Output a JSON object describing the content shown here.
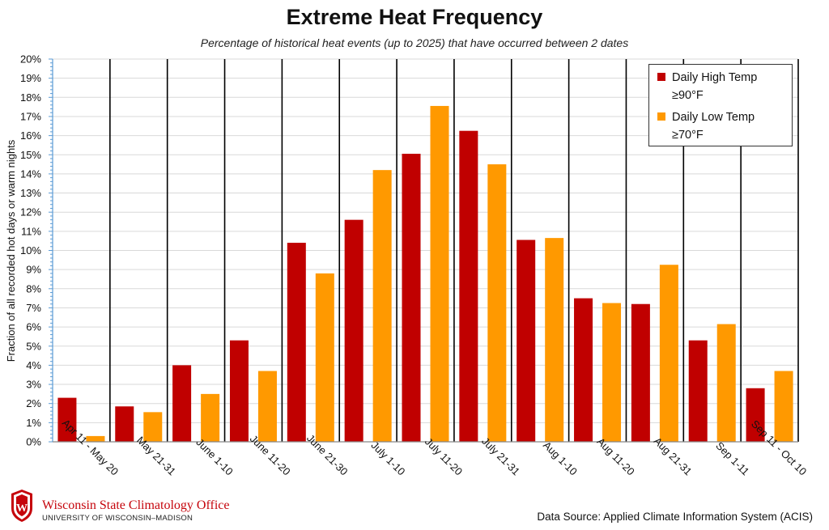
{
  "chart_data": {
    "type": "bar",
    "title": "Extreme Heat Frequency",
    "subtitle": "Percentage of historical heat events (up to 2025) that have occurred between 2 dates",
    "xlabel": "",
    "ylabel": "Fraction of all recorded hot days or warm nights",
    "ylim": [
      0,
      20
    ],
    "y_ticks": [
      "0%",
      "1%",
      "2%",
      "3%",
      "4%",
      "5%",
      "6%",
      "7%",
      "8%",
      "9%",
      "10%",
      "11%",
      "12%",
      "13%",
      "14%",
      "15%",
      "16%",
      "17%",
      "18%",
      "19%",
      "20%"
    ],
    "grid": true,
    "legend_position": "top-right",
    "categories": [
      "Apr 11 - May 20",
      "May 21-31",
      "June 1-10",
      "June 11-20",
      "June 21-30",
      "July 1-10",
      "July 11-20",
      "July 21-31",
      "Aug 1-10",
      "Aug 11-20",
      "Aug 21-31",
      "Sep 1-11",
      "Sep 11 - Oct 10"
    ],
    "series": [
      {
        "name": "Daily High Temp ≥90°F",
        "legend_line1": "Daily High Temp",
        "legend_line2": "≥90°F",
        "color": "#c00000",
        "values": [
          2.3,
          1.85,
          4.0,
          5.3,
          10.4,
          11.6,
          15.05,
          16.25,
          10.55,
          7.5,
          7.2,
          5.3,
          2.8
        ]
      },
      {
        "name": "Daily Low Temp ≥70°F",
        "legend_line1": "Daily Low Temp",
        "legend_line2": "≥70°F",
        "color": "#ff9900",
        "values": [
          0.3,
          1.55,
          2.5,
          3.7,
          8.8,
          14.2,
          17.55,
          14.5,
          10.65,
          7.25,
          9.25,
          6.15,
          3.7
        ]
      }
    ]
  },
  "footer": {
    "org_name": "Wisconsin State Climatology Office",
    "org_sub": "UNIVERSITY OF WISCONSIN–MADISON",
    "seal_letter": "W",
    "source": "Data Source: Applied Climate Information System (ACIS)"
  },
  "colors": {
    "brand_red": "#c5050c",
    "axis_blue": "#5b9bd5",
    "divider": "#000000",
    "gridline": "#d9d9d9"
  }
}
